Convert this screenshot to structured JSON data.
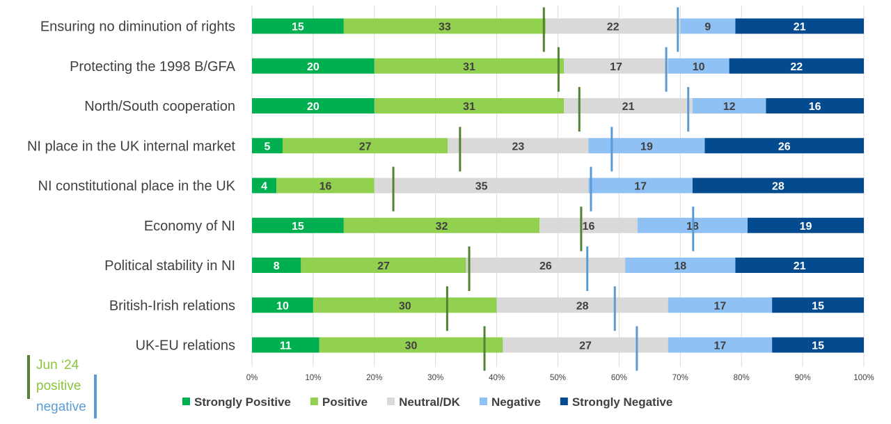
{
  "chart_data": {
    "type": "bar",
    "orientation": "horizontal",
    "stacked": true,
    "categories": [
      "Ensuring no diminution of rights",
      "Protecting the 1998 B/GFA",
      "North/South cooperation",
      "NI place in the UK internal market",
      "NI constitutional place in the UK",
      "Economy of NI",
      "Political stability in NI",
      "British-Irish relations",
      "UK-EU relations"
    ],
    "series": [
      {
        "name": "Strongly Positive",
        "color": "#00b050",
        "label_color": "#ffffff",
        "values": [
          15,
          20,
          20,
          5,
          4,
          15,
          8,
          10,
          11
        ]
      },
      {
        "name": "Positive",
        "color": "#92d050",
        "label_color": "#404040",
        "values": [
          33,
          31,
          31,
          27,
          16,
          32,
          27,
          30,
          30
        ]
      },
      {
        "name": "Neutral/DK",
        "color": "#d9d9d9",
        "label_color": "#404040",
        "values": [
          22,
          17,
          21,
          23,
          35,
          16,
          26,
          28,
          27
        ]
      },
      {
        "name": "Negative",
        "color": "#8fc1f5",
        "label_color": "#404040",
        "values": [
          9,
          10,
          12,
          19,
          17,
          18,
          18,
          17,
          17
        ]
      },
      {
        "name": "Strongly Negative",
        "color": "#044a8e",
        "label_color": "#ffffff",
        "values": [
          21,
          22,
          16,
          26,
          28,
          19,
          21,
          15,
          15
        ]
      }
    ],
    "markers": [
      {
        "name": "positive",
        "period": "Jun ‘24",
        "color": "#548235",
        "values": [
          47.7,
          50.1,
          53.5,
          34.0,
          23.1,
          53.8,
          35.5,
          31.9,
          38.0
        ]
      },
      {
        "name": "negative",
        "color": "#5b9bd5",
        "values": [
          69.6,
          67.7,
          71.3,
          58.8,
          55.4,
          72.1,
          54.8,
          59.3,
          62.9
        ]
      }
    ],
    "xlim": [
      0,
      100
    ],
    "xticks": [
      "0%",
      "10%",
      "20%",
      "30%",
      "40%",
      "50%",
      "60%",
      "70%",
      "80%",
      "90%",
      "100%"
    ],
    "grid": true,
    "legend_position": "bottom",
    "title": "",
    "xlabel": "",
    "ylabel": ""
  },
  "key": {
    "period": "Jun ‘24",
    "positive": "positive",
    "negative": "negative"
  }
}
